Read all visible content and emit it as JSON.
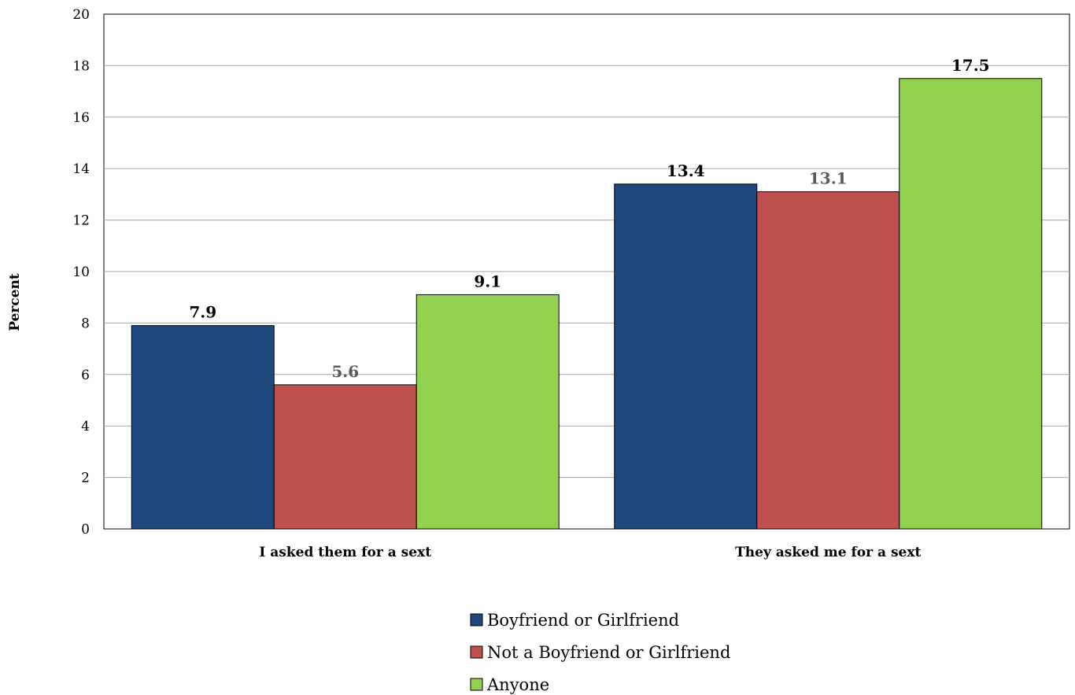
{
  "chart_data": {
    "type": "bar",
    "title": "",
    "xlabel": "",
    "ylabel": "Percent",
    "categories": [
      "I asked them for a sext",
      "They asked me for a sext"
    ],
    "series": [
      {
        "name": "Boyfriend or Girlfriend",
        "values": [
          7.9,
          13.4
        ],
        "color": "#1f497d",
        "label_color": "#000000"
      },
      {
        "name": "Not a Boyfriend or Girlfriend",
        "values": [
          5.6,
          13.1
        ],
        "color": "#c0504d",
        "label_color": "#595959"
      },
      {
        "name": "Anyone",
        "values": [
          9.1,
          17.5
        ],
        "color": "#92d050",
        "label_color": "#000000"
      }
    ],
    "data_labels": [
      [
        "7.9",
        "13.4"
      ],
      [
        "5.6",
        "13.1"
      ],
      [
        "9.1",
        "17.5"
      ]
    ],
    "ylim": [
      0,
      20
    ],
    "yticks": [
      0,
      2,
      4,
      6,
      8,
      10,
      12,
      14,
      16,
      18,
      20
    ],
    "grid": true,
    "legend": "bottom"
  }
}
